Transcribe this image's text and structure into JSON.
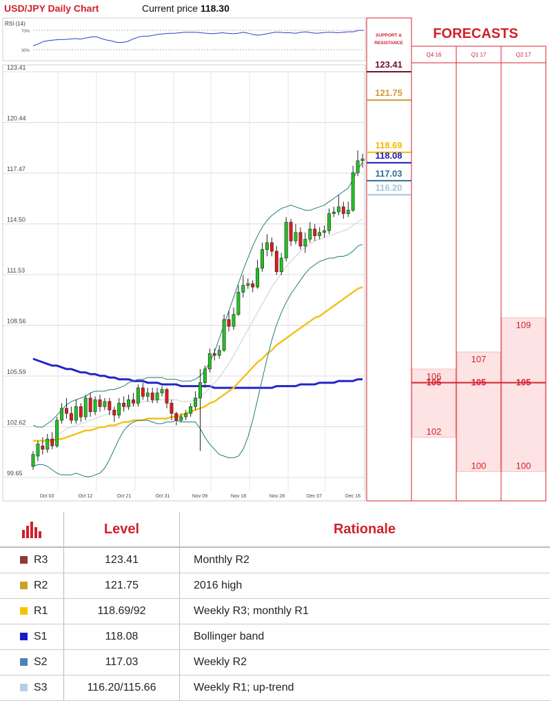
{
  "header": {
    "title": "USD/JPY Daily Chart",
    "price_label": "Current price",
    "price_value": "118.30"
  },
  "chart_data": {
    "type": "candlestick",
    "rsi": {
      "label": "RSI (14)",
      "levels": [
        "70%",
        "30%"
      ],
      "values": [
        38,
        42,
        47,
        49,
        50,
        51,
        51,
        52,
        53,
        52,
        54,
        56,
        57,
        53,
        50,
        48,
        45,
        45,
        47,
        52,
        56,
        58,
        58,
        60,
        62,
        63,
        64,
        64,
        65,
        66,
        66,
        66,
        65,
        64,
        63,
        64,
        65,
        64,
        63,
        64,
        66,
        64,
        61,
        60,
        62,
        64,
        66,
        66,
        65,
        65,
        64,
        66,
        67,
        65,
        64,
        65,
        66,
        66,
        65,
        66,
        67,
        67,
        70,
        70
      ]
    },
    "yticks": [
      "123.41",
      "120.44",
      "117.47",
      "114.50",
      "111.53",
      "108.56",
      "105.59",
      "102.62",
      "99.65"
    ],
    "ylim": [
      99.65,
      123.41
    ],
    "xticks": [
      "Oct 03",
      "Oct 12",
      "Oct 21",
      "Oct 31",
      "Nov 09",
      "Nov 18",
      "Nov 28",
      "Dec 07",
      "Dec 16"
    ],
    "candles": [
      [
        100.3,
        101.0,
        101.2,
        100.1
      ],
      [
        100.9,
        101.6,
        101.8,
        100.6
      ],
      [
        101.5,
        101.3,
        102.0,
        101.0
      ],
      [
        101.3,
        101.9,
        102.2,
        101.1
      ],
      [
        101.9,
        101.5,
        102.3,
        101.3
      ],
      [
        101.5,
        103.0,
        103.2,
        101.4
      ],
      [
        103.0,
        103.7,
        104.0,
        102.8
      ],
      [
        103.7,
        103.4,
        104.3,
        103.1
      ],
      [
        103.4,
        103.0,
        103.8,
        102.8
      ],
      [
        103.0,
        103.8,
        104.2,
        102.8
      ],
      [
        103.8,
        103.2,
        104.0,
        102.9
      ],
      [
        103.2,
        104.3,
        104.5,
        103.0
      ],
      [
        104.3,
        103.5,
        104.6,
        103.2
      ],
      [
        103.5,
        104.2,
        104.4,
        103.3
      ],
      [
        104.2,
        103.8,
        104.5,
        103.5
      ],
      [
        103.8,
        104.1,
        104.3,
        103.6
      ],
      [
        104.1,
        103.6,
        104.3,
        103.3
      ],
      [
        103.6,
        103.3,
        103.8,
        102.9
      ],
      [
        103.3,
        104.0,
        104.3,
        103.1
      ],
      [
        104.0,
        103.8,
        104.4,
        103.5
      ],
      [
        103.8,
        104.2,
        104.5,
        103.6
      ],
      [
        104.2,
        104.0,
        104.6,
        103.8
      ],
      [
        104.0,
        104.9,
        105.1,
        103.8
      ],
      [
        104.9,
        104.4,
        105.2,
        104.2
      ],
      [
        104.4,
        104.6,
        104.9,
        104.1
      ],
      [
        104.6,
        104.2,
        104.9,
        104.0
      ],
      [
        104.2,
        104.6,
        104.9,
        104.0
      ],
      [
        104.6,
        104.8,
        105.0,
        104.4
      ],
      [
        104.8,
        104.0,
        104.9,
        103.7
      ],
      [
        104.0,
        103.4,
        104.2,
        103.0
      ],
      [
        103.4,
        103.0,
        103.5,
        102.7
      ],
      [
        103.0,
        103.2,
        103.4,
        102.9
      ],
      [
        103.2,
        103.4,
        103.6,
        103.0
      ],
      [
        103.4,
        103.8,
        104.0,
        103.2
      ],
      [
        103.8,
        104.3,
        104.7,
        103.6
      ],
      [
        104.3,
        105.2,
        106.0,
        101.2
      ],
      [
        105.2,
        106.0,
        106.2,
        104.9
      ],
      [
        106.0,
        106.9,
        107.2,
        105.8
      ],
      [
        106.9,
        106.8,
        107.2,
        106.5
      ],
      [
        106.8,
        107.1,
        107.4,
        106.6
      ],
      [
        107.1,
        108.9,
        109.2,
        107.0
      ],
      [
        108.9,
        108.5,
        109.4,
        108.2
      ],
      [
        108.5,
        109.2,
        109.6,
        108.3
      ],
      [
        109.2,
        110.5,
        110.9,
        109.1
      ],
      [
        110.5,
        110.9,
        111.5,
        110.2
      ],
      [
        110.9,
        111.0,
        111.3,
        110.7
      ],
      [
        111.0,
        110.8,
        111.2,
        110.5
      ],
      [
        110.8,
        111.9,
        112.4,
        110.7
      ],
      [
        111.9,
        113.0,
        113.4,
        111.7
      ],
      [
        113.0,
        113.4,
        113.9,
        112.6
      ],
      [
        113.4,
        112.9,
        113.7,
        112.6
      ],
      [
        112.9,
        111.7,
        113.2,
        111.5
      ],
      [
        111.7,
        112.5,
        112.8,
        111.5
      ],
      [
        112.5,
        114.6,
        114.9,
        112.3
      ],
      [
        114.6,
        113.5,
        114.8,
        113.2
      ],
      [
        113.5,
        114.0,
        114.5,
        113.3
      ],
      [
        114.0,
        113.2,
        114.3,
        113.0
      ],
      [
        113.2,
        113.6,
        114.0,
        112.8
      ],
      [
        113.6,
        114.2,
        114.6,
        113.4
      ],
      [
        114.2,
        113.8,
        114.5,
        113.5
      ],
      [
        113.8,
        114.0,
        114.3,
        113.6
      ],
      [
        114.0,
        114.1,
        114.4,
        113.7
      ],
      [
        114.1,
        115.1,
        115.4,
        113.9
      ],
      [
        115.1,
        115.2,
        115.5,
        114.9
      ],
      [
        115.2,
        115.5,
        116.2,
        115.0
      ],
      [
        115.5,
        115.1,
        115.8,
        114.8
      ],
      [
        115.1,
        115.3,
        115.8,
        114.9
      ],
      [
        115.3,
        117.5,
        117.9,
        115.2
      ],
      [
        117.5,
        118.2,
        118.8,
        117.3
      ],
      [
        118.2,
        118.3,
        118.6,
        117.8
      ]
    ],
    "bollinger_upper": [
      102.7,
      102.6,
      102.6,
      102.8,
      103.0,
      103.3,
      103.6,
      103.9,
      104.1,
      104.2,
      104.3,
      104.4,
      104.6,
      104.7,
      104.7,
      104.7,
      104.8,
      104.8,
      104.9,
      105.0,
      105.2,
      105.3,
      105.4,
      105.4,
      105.5,
      105.5,
      105.5,
      105.5,
      105.4,
      105.4,
      105.4,
      105.3,
      105.3,
      105.3,
      105.4,
      105.6,
      105.9,
      106.4,
      107.0,
      107.8,
      108.6,
      109.4,
      110.2,
      111.0,
      111.8,
      112.5,
      113.2,
      113.8,
      114.3,
      114.7,
      115.0,
      115.2,
      115.4,
      115.5,
      115.6,
      115.5,
      115.4,
      115.3,
      115.3,
      115.4,
      115.5,
      115.6,
      115.8,
      116.0,
      116.2,
      116.4,
      116.6,
      117.1,
      117.7,
      118.1
    ],
    "bollinger_mid": [
      101.5,
      101.6,
      101.7,
      101.8,
      101.9,
      102.1,
      102.3,
      102.5,
      102.6,
      102.7,
      102.8,
      102.9,
      103.0,
      103.1,
      103.2,
      103.3,
      103.4,
      103.5,
      103.6,
      103.7,
      103.8,
      103.9,
      104.0,
      104.1,
      104.1,
      104.1,
      104.2,
      104.2,
      104.2,
      104.2,
      104.2,
      104.1,
      104.1,
      104.1,
      104.2,
      104.4,
      104.6,
      104.9,
      105.2,
      105.5,
      105.9,
      106.3,
      106.8,
      107.3,
      107.8,
      108.3,
      108.8,
      109.3,
      109.8,
      110.3,
      110.8,
      111.2,
      111.6,
      112.0,
      112.3,
      112.6,
      112.9,
      113.1,
      113.3,
      113.5,
      113.6,
      113.7,
      113.8,
      113.9,
      114.0,
      114.1,
      114.2,
      114.4,
      114.6,
      114.8
    ],
    "bollinger_lower": [
      100.3,
      100.4,
      100.4,
      100.3,
      100.1,
      99.9,
      99.8,
      99.8,
      99.8,
      99.9,
      99.8,
      99.7,
      99.7,
      99.8,
      99.9,
      100.2,
      100.7,
      101.3,
      101.9,
      102.4,
      102.7,
      102.9,
      103.0,
      103.0,
      103.0,
      102.9,
      102.8,
      102.8,
      102.9,
      102.9,
      103.0,
      102.9,
      102.9,
      102.9,
      102.9,
      102.5,
      102.0,
      101.6,
      101.3,
      101.0,
      100.9,
      100.8,
      100.8,
      100.9,
      101.3,
      102.0,
      103.0,
      104.2,
      105.4,
      106.6,
      107.7,
      108.6,
      109.3,
      109.9,
      110.4,
      110.8,
      111.2,
      111.6,
      111.9,
      112.1,
      112.3,
      112.4,
      112.5,
      112.5,
      112.6,
      112.6,
      112.7,
      112.9,
      113.2,
      113.3
    ],
    "sma_yellow": [
      101.8,
      101.8,
      101.8,
      101.8,
      101.8,
      101.9,
      101.9,
      102.0,
      102.1,
      102.2,
      102.3,
      102.4,
      102.4,
      102.5,
      102.6,
      102.6,
      102.7,
      102.7,
      102.8,
      102.9,
      102.9,
      103.0,
      103.0,
      103.0,
      103.1,
      103.1,
      103.1,
      103.1,
      103.1,
      103.2,
      103.2,
      103.3,
      103.4,
      103.5,
      103.6,
      103.7,
      103.8,
      104.0,
      104.1,
      104.3,
      104.5,
      104.7,
      104.9,
      105.2,
      105.5,
      105.8,
      106.1,
      106.4,
      106.6,
      106.9,
      107.1,
      107.4,
      107.6,
      107.8,
      108.0,
      108.2,
      108.4,
      108.6,
      108.8,
      109.0,
      109.1,
      109.3,
      109.5,
      109.7,
      109.9,
      110.1,
      110.3,
      110.5,
      110.7,
      110.8
    ],
    "sma_blue": [
      106.6,
      106.5,
      106.4,
      106.3,
      106.2,
      106.2,
      106.1,
      106.0,
      106.0,
      105.9,
      105.8,
      105.8,
      105.7,
      105.7,
      105.6,
      105.6,
      105.5,
      105.5,
      105.4,
      105.4,
      105.4,
      105.3,
      105.3,
      105.3,
      105.2,
      105.2,
      105.2,
      105.1,
      105.1,
      105.1,
      105.1,
      105.0,
      105.0,
      105.0,
      105.0,
      105.0,
      105.0,
      105.0,
      104.9,
      104.9,
      104.9,
      104.9,
      104.9,
      104.9,
      104.9,
      104.9,
      104.9,
      104.9,
      104.9,
      104.9,
      104.9,
      105.0,
      105.0,
      105.0,
      105.0,
      105.0,
      105.1,
      105.1,
      105.1,
      105.1,
      105.2,
      105.2,
      105.2,
      105.2,
      105.3,
      105.3,
      105.3,
      105.3,
      105.4,
      105.4
    ],
    "support_resistance": {
      "header": "SUPPORT & RESISTANCE",
      "levels": [
        {
          "value": "123.41",
          "price": 123.41,
          "color": "#6e1230"
        },
        {
          "value": "121.75",
          "price": 121.75,
          "color": "#d09b3a"
        },
        {
          "value": "118.69",
          "price": 118.69,
          "color": "#f3b800"
        },
        {
          "value": "118.08",
          "price": 118.08,
          "color": "#1c1cb8"
        },
        {
          "value": "117.03",
          "price": 117.03,
          "color": "#2f6d96"
        },
        {
          "value": "116.20",
          "price": 116.2,
          "color": "#a7c4d8"
        }
      ]
    },
    "forecasts": {
      "title": "FORECASTS",
      "columns": [
        "Q4 16",
        "Q1 17",
        "Q2 17"
      ],
      "current_price_line": 105.2,
      "bands": [
        {
          "col": 0,
          "high": 106,
          "mid": 105,
          "low": 102,
          "high_label": "106",
          "mid_label": "105",
          "low_label": "102"
        },
        {
          "col": 1,
          "high": 107,
          "mid": 105,
          "low": 100,
          "high_label": "107",
          "mid_label": "105",
          "low_label": "100"
        },
        {
          "col": 2,
          "high": 109,
          "mid": 105,
          "low": 100,
          "high_label": "109",
          "mid_label": "105",
          "low_label": "100"
        }
      ]
    }
  },
  "table": {
    "header": {
      "level": "Level",
      "rationale": "Rationale"
    },
    "rows": [
      {
        "code": "R3",
        "level": "123.41",
        "rationale": "Monthly R2",
        "color": "#8b3a3a"
      },
      {
        "code": "R2",
        "level": "121.75",
        "rationale": "2016 high",
        "color": "#c9a227"
      },
      {
        "code": "R1",
        "level": "118.69/92",
        "rationale": "Weekly R3; monthly R1",
        "color": "#f5c400"
      },
      {
        "code": "S1",
        "level": "118.08",
        "rationale": "Bollinger band",
        "color": "#1a1ac8"
      },
      {
        "code": "S2",
        "level": "117.03",
        "rationale": "Weekly R2",
        "color": "#4f7fc0"
      },
      {
        "code": "S3",
        "level": "116.20/115.66",
        "rationale": "Weekly R1; up-trend",
        "color": "#b9cde6"
      }
    ]
  }
}
